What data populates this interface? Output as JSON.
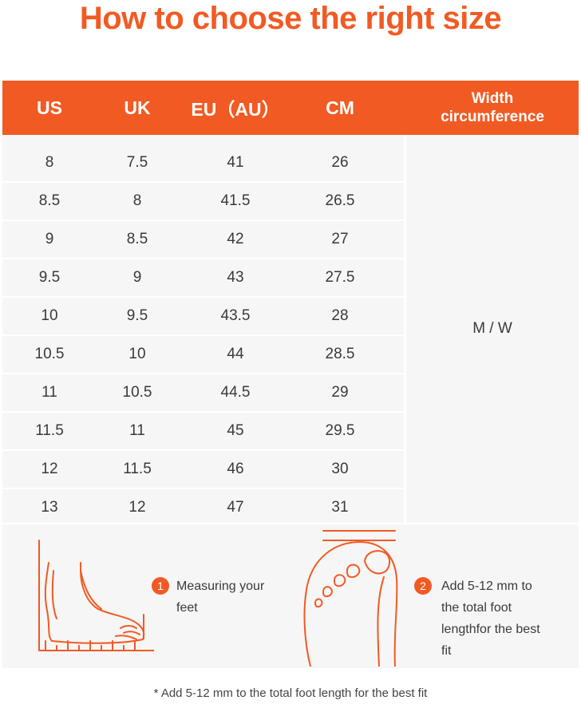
{
  "title": "How to choose the right size",
  "columns": [
    "US",
    "UK",
    "EU（AU）",
    "CM",
    "Width circumference"
  ],
  "rows": [
    [
      "8",
      "7.5",
      "41",
      "26"
    ],
    [
      "8.5",
      "8",
      "41.5",
      "26.5"
    ],
    [
      "9",
      "8.5",
      "42",
      "27"
    ],
    [
      "9.5",
      "9",
      "43",
      "27.5"
    ],
    [
      "10",
      "9.5",
      "43.5",
      "28"
    ],
    [
      "10.5",
      "10",
      "44",
      "28.5"
    ],
    [
      "11",
      "10.5",
      "44.5",
      "29"
    ],
    [
      "11.5",
      "11",
      "45",
      "29.5"
    ],
    [
      "12",
      "11.5",
      "46",
      "30"
    ],
    [
      "13",
      "12",
      "47",
      "31"
    ]
  ],
  "width_value": "M / W",
  "steps": [
    {
      "number": "1",
      "text": "Measuring your feet"
    },
    {
      "number": "2",
      "text": "Add 5-12 mm to the total foot lengthfor the best fit"
    }
  ],
  "footnote": "* Add 5-12 mm to the total foot length for the best fit",
  "colors": {
    "accent": "#f25a23",
    "cell_bg": "#f6f6f6",
    "text": "#3a3a3a"
  },
  "icons": [
    "foot-side-icon",
    "foot-top-icon"
  ]
}
